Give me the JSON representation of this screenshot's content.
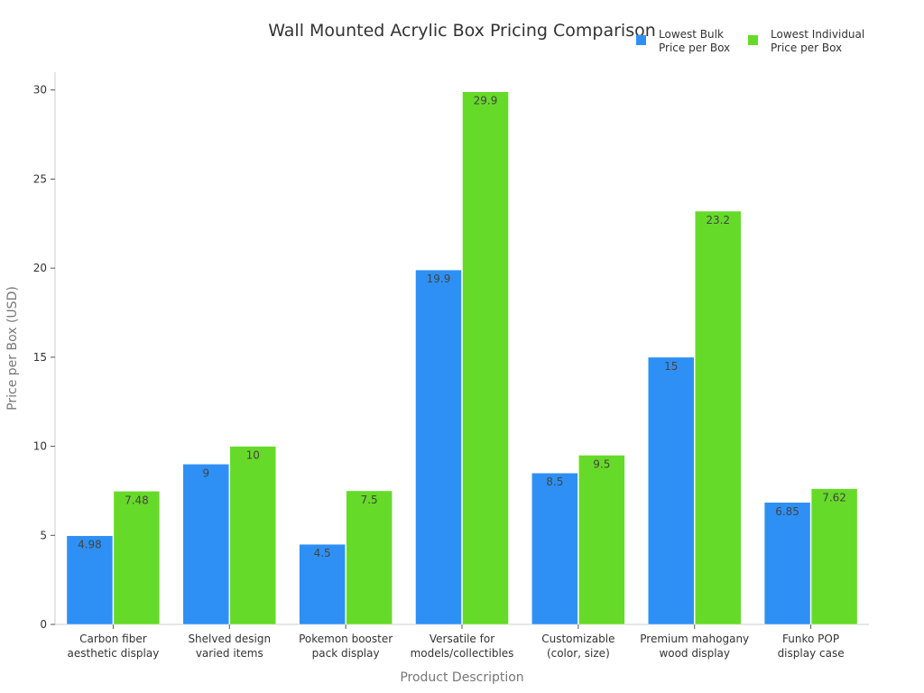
{
  "chart_data": {
    "type": "bar",
    "title": "Wall Mounted Acrylic Box Pricing Comparison",
    "xlabel": "Product Description",
    "ylabel": "Price per Box (USD)",
    "ylim": [
      0,
      31
    ],
    "yticks": [
      0,
      5,
      10,
      15,
      20,
      25,
      30
    ],
    "grid": false,
    "legend_position": "top-right",
    "categories": [
      [
        "Carbon fiber",
        "aesthetic display"
      ],
      [
        "Shelved design",
        "varied items"
      ],
      [
        "Pokemon booster",
        "pack display"
      ],
      [
        "Versatile for",
        "models/collectibles"
      ],
      [
        "Customizable",
        "(color, size)"
      ],
      [
        "Premium mahogany",
        "wood display"
      ],
      [
        "Funko POP",
        "display case"
      ]
    ],
    "series": [
      {
        "name": [
          "Lowest Bulk",
          "Price per Box"
        ],
        "color": "#2E90F5",
        "values": [
          4.98,
          9,
          4.5,
          19.9,
          8.5,
          15,
          6.85
        ],
        "labels": [
          "4.98",
          "9",
          "4.5",
          "19.9",
          "8.5",
          "15",
          "6.85"
        ]
      },
      {
        "name": [
          "Lowest Individual",
          "Price per Box"
        ],
        "color": "#66DA28",
        "values": [
          7.48,
          10,
          7.5,
          29.9,
          9.5,
          23.2,
          7.62
        ],
        "labels": [
          "7.48",
          "10",
          "7.5",
          "29.9",
          "9.5",
          "23.2",
          "7.62"
        ]
      }
    ]
  }
}
